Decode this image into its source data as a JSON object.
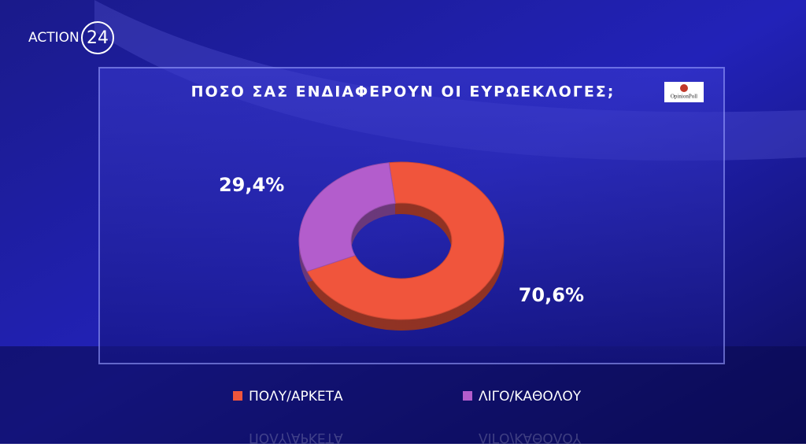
{
  "channel_logo": {
    "name": "ACTION",
    "number": "24"
  },
  "poll_logo": "OpinionPoll",
  "chart_data": {
    "type": "donut",
    "title": "ΠΟΣΟ ΣΑΣ ΕΝΔΙΑΦΕΡΟΥΝ ΟΙ ΕΥΡΩΕΚΛΟΓΕΣ;",
    "categories": [
      "ΠΟΛΥ/ΑΡΚΕΤΑ",
      "ΛΙΓΟ/ΚΑΘΟΛΟΥ"
    ],
    "values": [
      70.6,
      29.4
    ],
    "value_labels": [
      "70,6%",
      "29,4%"
    ],
    "colors": [
      "#f0553c",
      "#b35dcc"
    ]
  }
}
